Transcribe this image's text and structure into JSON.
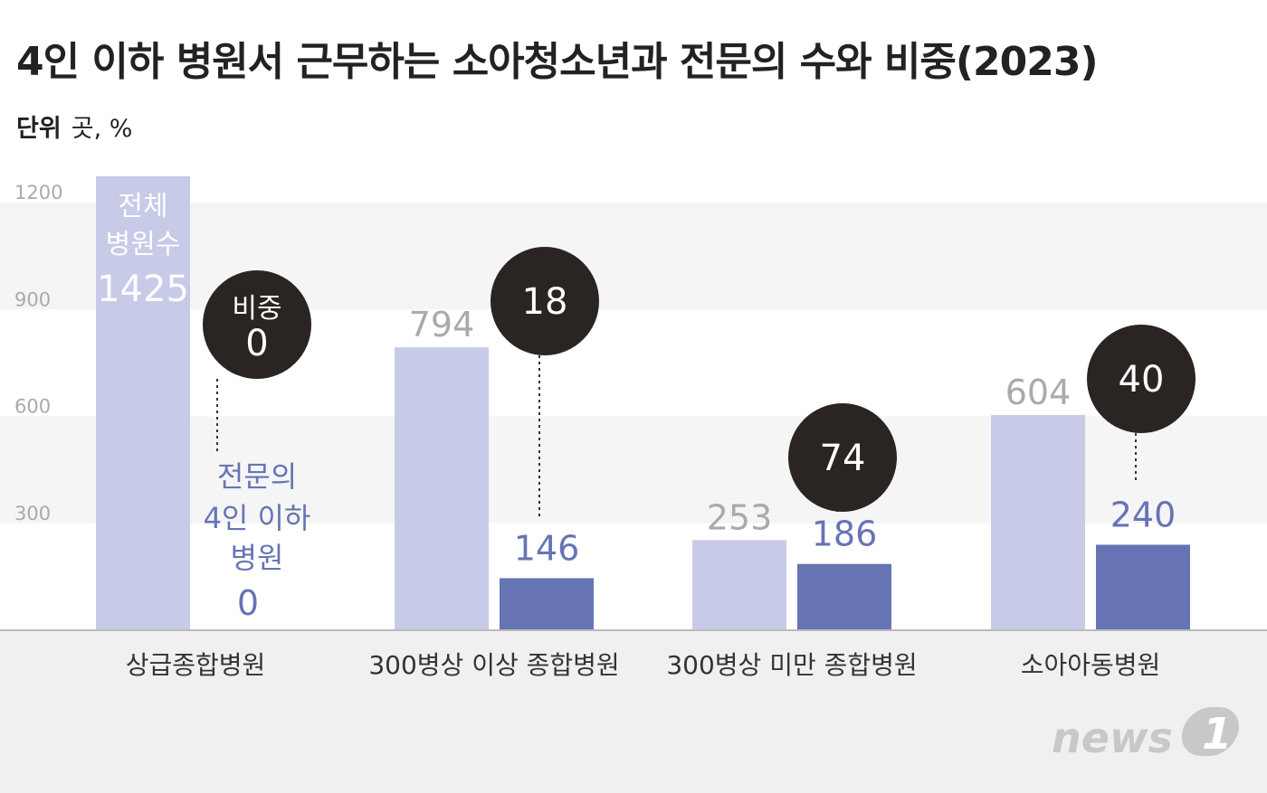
{
  "title": "4인 이하 병원서 근무하는 소아청소년과 전문의 수와 비중(2023)",
  "unit": {
    "label": "단위",
    "value": "곳, %"
  },
  "colors": {
    "total": "#c7cbe7",
    "specialist": "#6674b4",
    "bubble": "#2a2422",
    "band": "#f5f5f5",
    "baseline": "#bbbbbb"
  },
  "annotations": {
    "total_label_line1": "전체",
    "total_label_line2": "병원수",
    "share_label": "비중",
    "spec_label_line1": "전문의",
    "spec_label_line2": "4인 이하",
    "spec_label_line3": "병원"
  },
  "logo": {
    "text": "news",
    "mark": "1"
  },
  "chart_data": {
    "type": "bar",
    "title": "4인 이하 병원서 근무하는 소아청소년과 전문의 수와 비중(2023)",
    "ylim": [
      0,
      1350
    ],
    "yticks": [
      300,
      600,
      900,
      1200
    ],
    "grid": "alternating bands",
    "categories": [
      "상급종합병원",
      "300병상 이상 종합병원",
      "300병상 미만 종합병원",
      "소아아동병원"
    ],
    "series": [
      {
        "values": [
          1425,
          794,
          253,
          604
        ]
      },
      {
        "values": [
          0,
          146,
          186,
          240
        ]
      }
    ],
    "share_percent": [
      0,
      18,
      74,
      40
    ]
  }
}
